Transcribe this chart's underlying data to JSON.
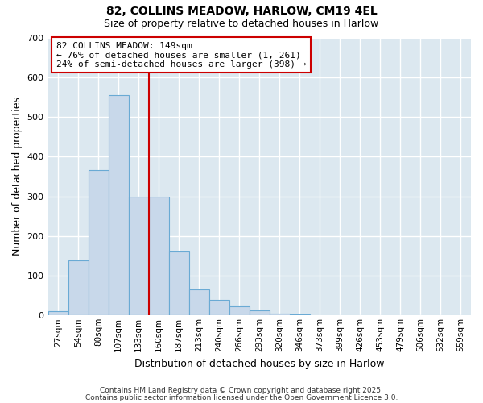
{
  "title1": "82, COLLINS MEADOW, HARLOW, CM19 4EL",
  "title2": "Size of property relative to detached houses in Harlow",
  "xlabel": "Distribution of detached houses by size in Harlow",
  "ylabel": "Number of detached properties",
  "bar_color": "#c8d8ea",
  "bar_edge_color": "#6aaad4",
  "plot_bg_color": "#dce8f0",
  "figure_bg_color": "#ffffff",
  "grid_color": "#ffffff",
  "categories": [
    "27sqm",
    "54sqm",
    "80sqm",
    "107sqm",
    "133sqm",
    "160sqm",
    "187sqm",
    "213sqm",
    "240sqm",
    "266sqm",
    "293sqm",
    "320sqm",
    "346sqm",
    "373sqm",
    "399sqm",
    "426sqm",
    "453sqm",
    "479sqm",
    "506sqm",
    "532sqm",
    "559sqm"
  ],
  "values": [
    10,
    138,
    365,
    555,
    300,
    300,
    160,
    65,
    40,
    22,
    12,
    5,
    2,
    0,
    0,
    0,
    0,
    0,
    0,
    0,
    0
  ],
  "ylim": [
    0,
    700
  ],
  "yticks": [
    0,
    100,
    200,
    300,
    400,
    500,
    600,
    700
  ],
  "vline_x": 4.5,
  "vline_color": "#cc0000",
  "annotation_text": "82 COLLINS MEADOW: 149sqm\n← 76% of detached houses are smaller (1, 261)\n24% of semi-detached houses are larger (398) →",
  "annotation_box_color": "#ffffff",
  "annotation_border_color": "#cc0000",
  "footnote1": "Contains HM Land Registry data © Crown copyright and database right 2025.",
  "footnote2": "Contains public sector information licensed under the Open Government Licence 3.0."
}
